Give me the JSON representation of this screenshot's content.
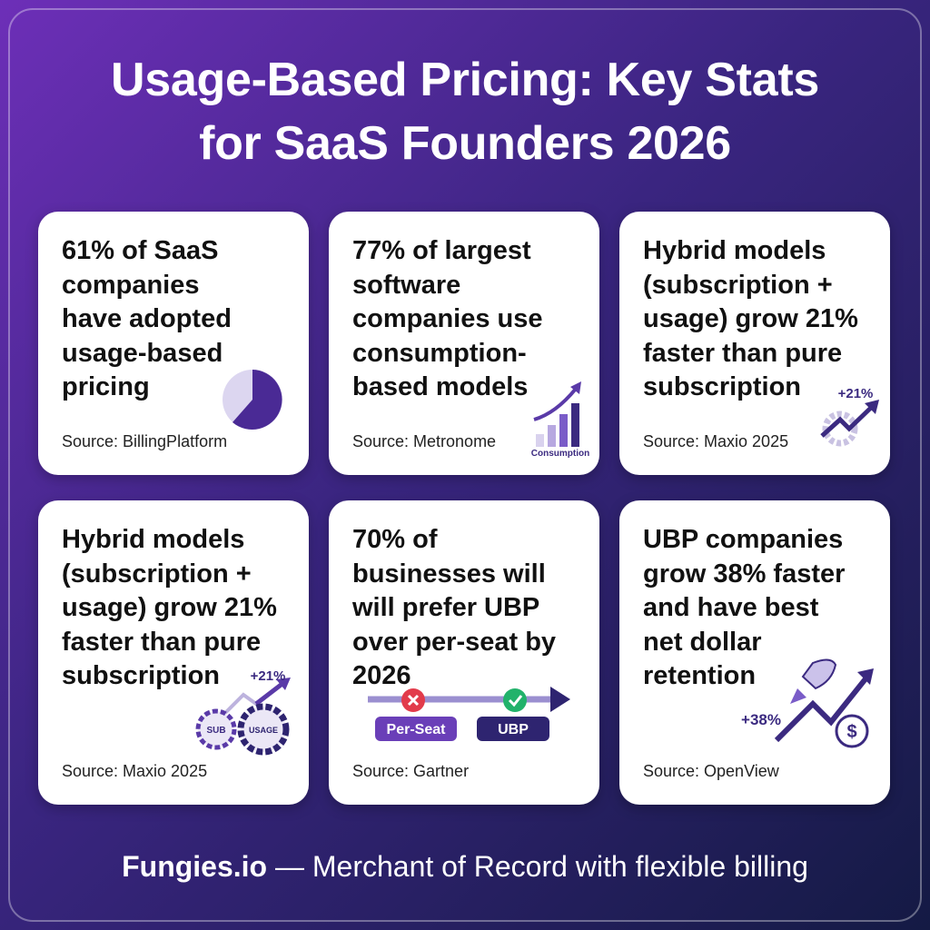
{
  "title": [
    "Usage-Based Pricing: Key Stats",
    "for SaaS Founders 2026"
  ],
  "cards": [
    {
      "lines": [
        "61% of SaaS",
        "companies",
        "have adopted",
        "usage-based",
        "pricing"
      ],
      "source": "Source: BillingPlatform"
    },
    {
      "lines": [
        "77% of largest",
        "software",
        "companies use",
        "consumption-",
        "based models"
      ],
      "icon_labels": [
        "Consumption"
      ],
      "source": "Source: Metronome"
    },
    {
      "lines": [
        "Hybrid models",
        "(subscription +",
        "usage) grow 21%",
        "faster than pure",
        "subscription"
      ],
      "icon_labels": [
        "+21%"
      ],
      "source": "Source: Maxio 2025"
    },
    {
      "lines": [
        "Hybrid models",
        "(subscription +",
        "usage) grow 21%",
        "faster than pure",
        "subscription"
      ],
      "icon_labels": [
        "+21%",
        "SUB",
        "USAGE"
      ],
      "source": "Source: Maxio 2025"
    },
    {
      "lines": [
        "70% of",
        "businesses will",
        "will prefer UBP",
        "over per-seat by",
        "2026"
      ],
      "icon_labels": [
        "Per-Seat",
        "UBP"
      ],
      "source": "Source: Gartner"
    },
    {
      "lines": [
        "UBP companies",
        "grow 38% faster",
        "and have best",
        "net dollar",
        "retention"
      ],
      "icon_labels": [
        "+38%"
      ],
      "source": "Source: OpenView"
    }
  ],
  "footer": {
    "brand": "Fungies.io",
    "text": " — Merchant of Record with flexible billing"
  }
}
